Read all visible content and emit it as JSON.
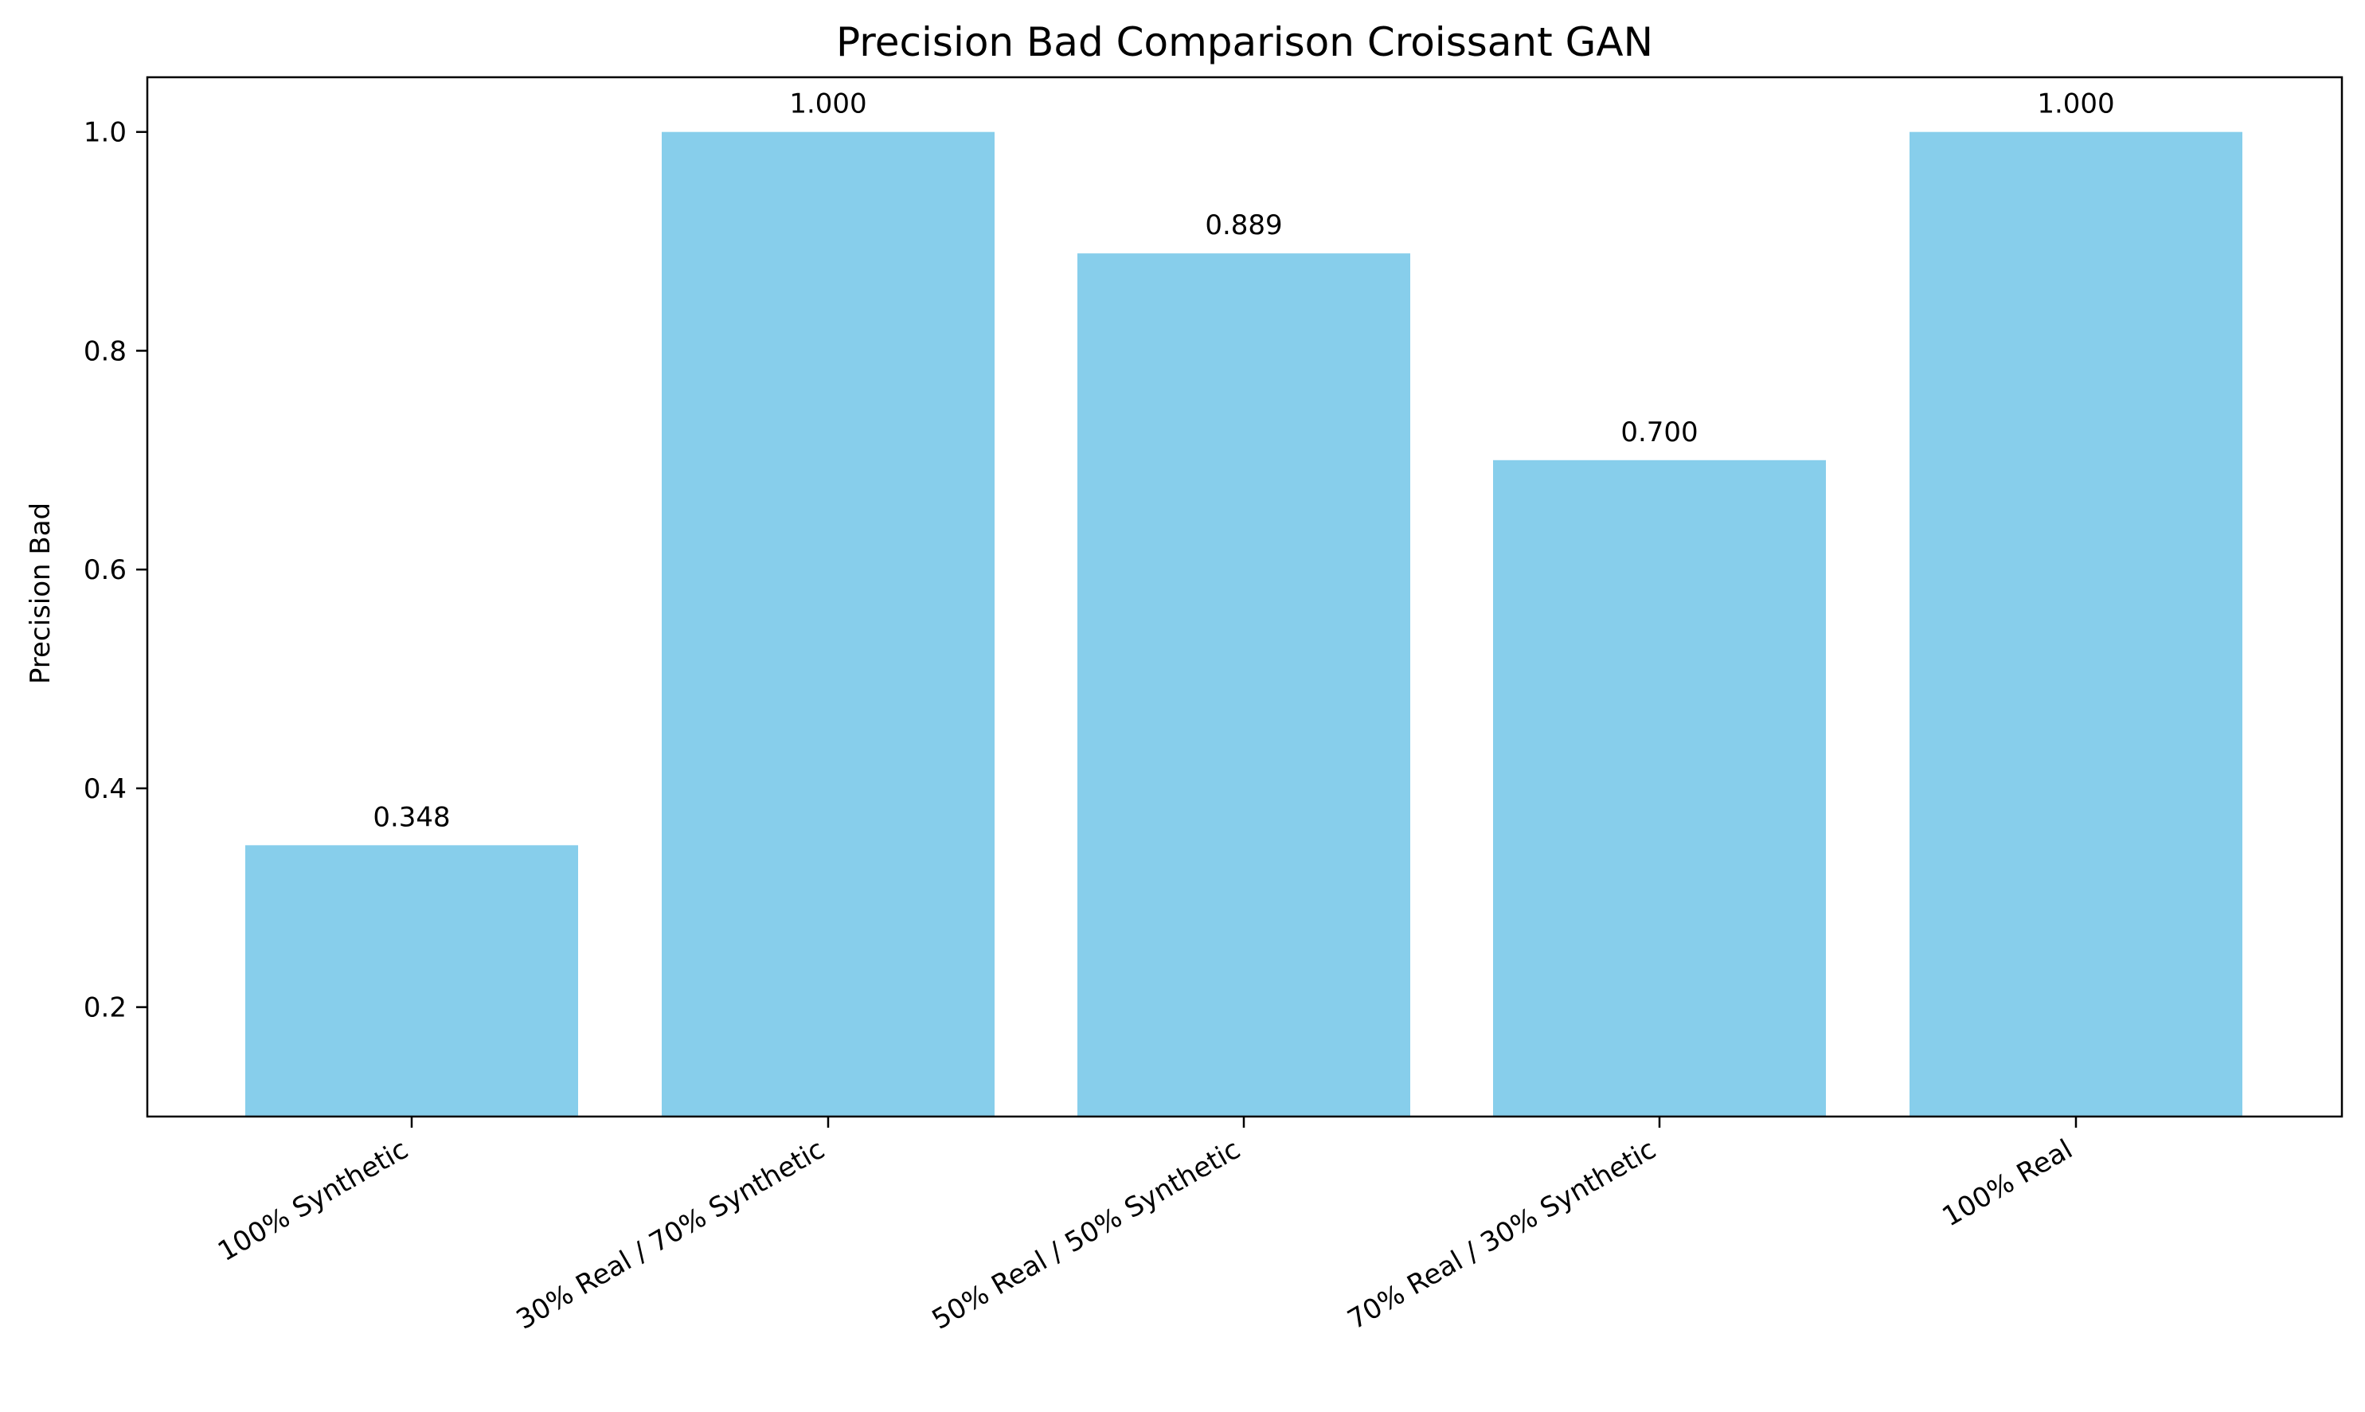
{
  "chart_data": {
    "type": "bar",
    "title": "Precision Bad Comparison Croissant GAN",
    "xlabel": "",
    "ylabel": "Precision Bad",
    "categories": [
      "100% Synthetic",
      "30% Real / 70% Synthetic",
      "50% Real / 50% Synthetic",
      "70% Real / 30% Synthetic",
      "100% Real"
    ],
    "values": [
      0.348,
      1.0,
      0.889,
      0.7,
      1.0
    ],
    "value_labels": [
      "0.348",
      "1.000",
      "0.889",
      "0.700",
      "1.000"
    ],
    "ylim": [
      0.1,
      1.05
    ],
    "yticks": [
      0.2,
      0.4,
      0.6,
      0.8,
      1.0
    ],
    "ytick_labels": [
      "0.2",
      "0.4",
      "0.6",
      "0.8",
      "1.0"
    ],
    "bar_color": "#87CEEB",
    "grid": false,
    "legend": "none"
  }
}
